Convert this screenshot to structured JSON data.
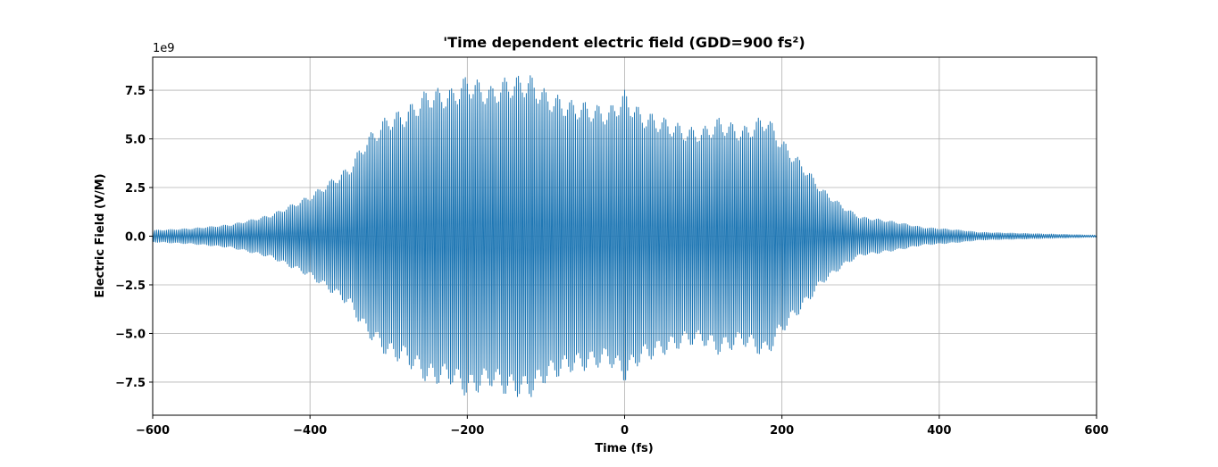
{
  "chart_data": {
    "type": "line",
    "title": "'Time dependent electric field (GDD=900 fs²)",
    "xlabel": "Time (fs)",
    "ylabel": "Electric Field (V/M)",
    "y_offset_label": "1e9",
    "xlim": [
      -600,
      600
    ],
    "ylim": [
      -9.2,
      9.2
    ],
    "y_scale": 1000000000.0,
    "x_ticks": [
      -600,
      -400,
      -200,
      0,
      200,
      400,
      600
    ],
    "x_tick_labels": [
      "−600",
      "−400",
      "−200",
      "0",
      "200",
      "400",
      "600"
    ],
    "y_ticks": [
      -7.5,
      -5.0,
      -2.5,
      0.0,
      2.5,
      5.0,
      7.5
    ],
    "y_tick_labels": [
      "−7.5",
      "−5.0",
      "−2.5",
      "0.0",
      "2.5",
      "5.0",
      "7.5"
    ],
    "grid": true,
    "color": "#1f77b4",
    "series": [
      {
        "envelope_time_fs": [
          -600,
          -550,
          -500,
          -450,
          -400,
          -370,
          -350,
          -330,
          -300,
          -280,
          -250,
          -220,
          -200,
          -170,
          -150,
          -120,
          -100,
          -70,
          -50,
          -20,
          0,
          20,
          50,
          80,
          100,
          120,
          150,
          180,
          200,
          230,
          250,
          280,
          300,
          320,
          350,
          380,
          400,
          430,
          450,
          500,
          550,
          600
        ],
        "envelope_amplitude": [
          0.3,
          0.4,
          0.6,
          1.1,
          2.1,
          3.0,
          3.6,
          5.0,
          6.3,
          6.5,
          7.6,
          7.6,
          8.3,
          7.7,
          8.2,
          8.3,
          7.5,
          7.0,
          6.9,
          6.6,
          7.5,
          6.5,
          6.1,
          5.6,
          5.6,
          6.1,
          5.6,
          6.3,
          5.0,
          3.6,
          2.5,
          1.5,
          1.0,
          0.9,
          0.7,
          0.45,
          0.4,
          0.3,
          0.2,
          0.15,
          0.1,
          0.05
        ]
      }
    ]
  }
}
